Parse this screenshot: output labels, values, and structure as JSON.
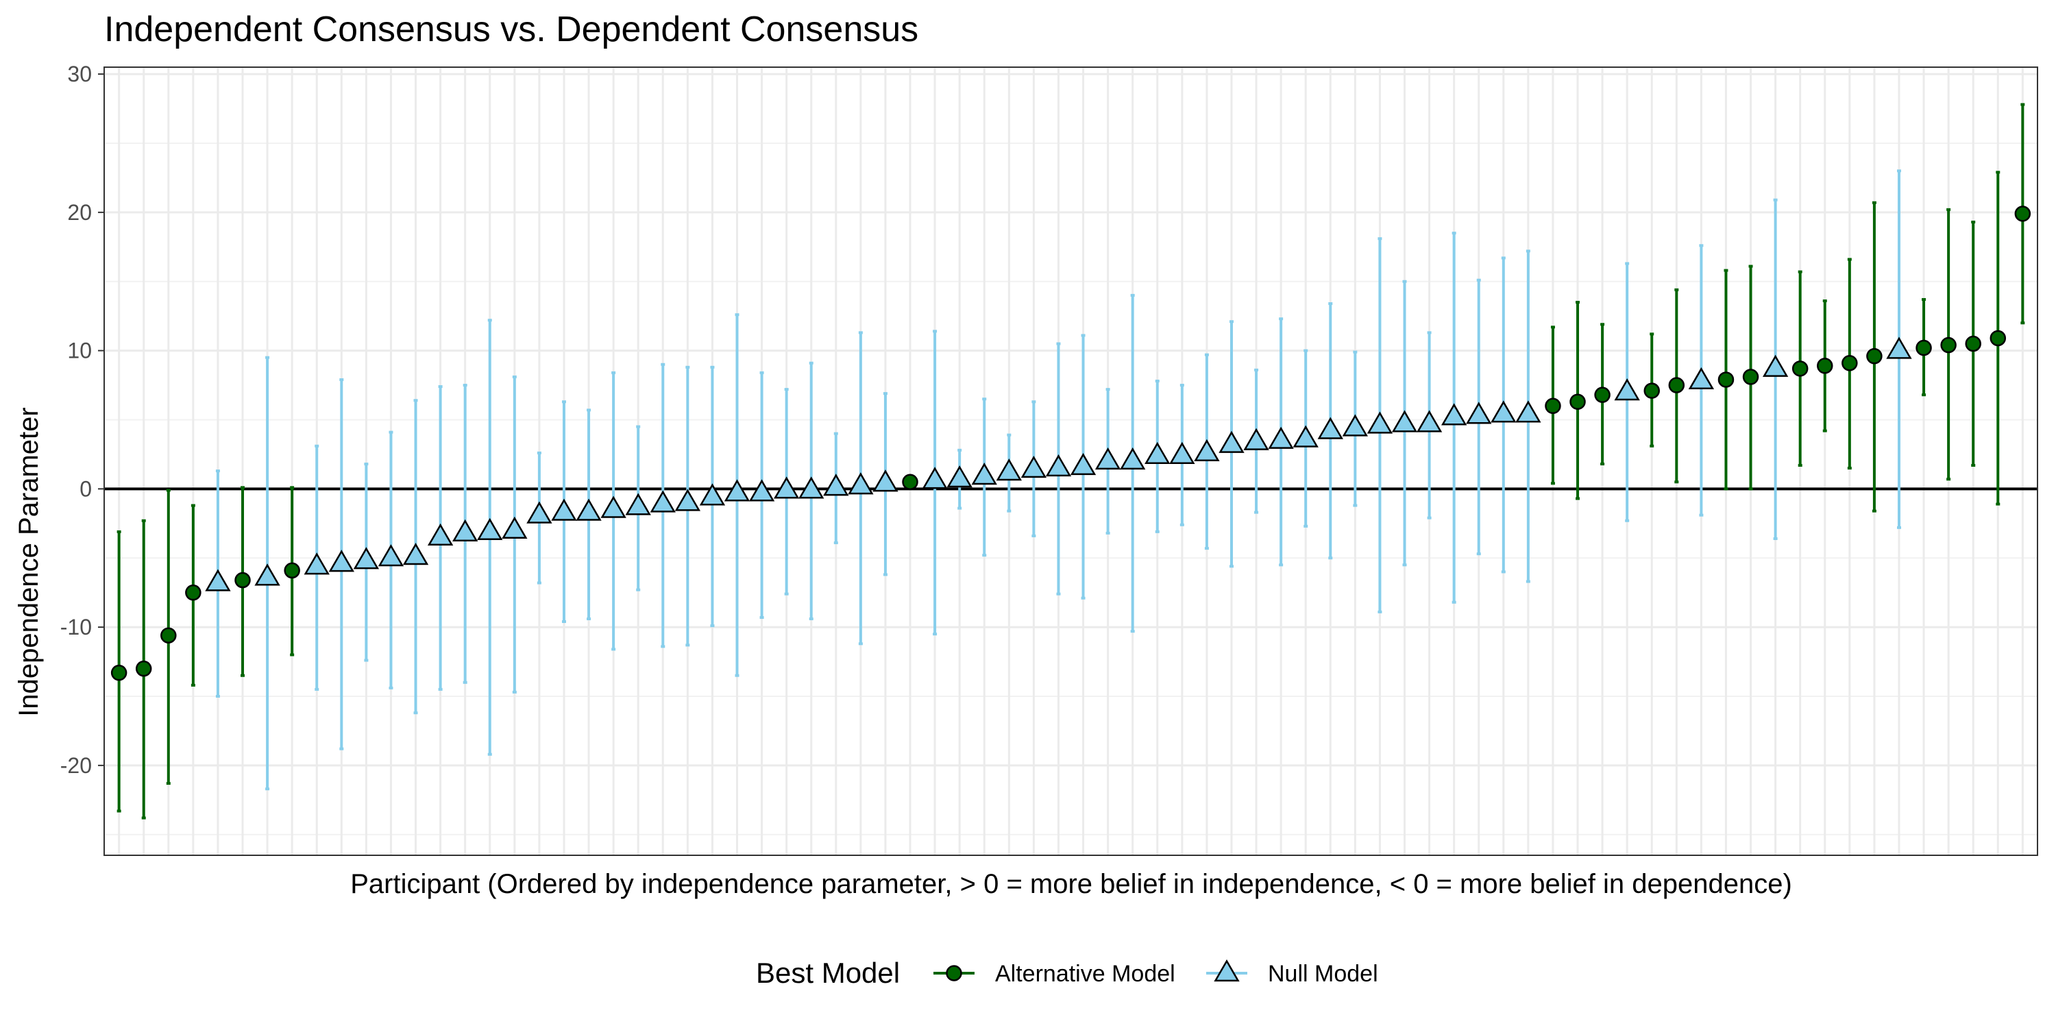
{
  "chart_data": {
    "type": "scatter",
    "title": "Independent Consensus vs. Dependent Consensus",
    "xlabel": "Participant (Ordered by independence parameter, > 0 = more belief in independence, < 0 = more belief in dependence)",
    "ylabel": "Independence Parameter",
    "ylim": [
      -26.5,
      30.5
    ],
    "yticks": [
      30,
      20,
      10,
      0,
      -10,
      -20
    ],
    "ytick_labels": [
      "30",
      "20",
      "10",
      "0",
      "-10",
      "-20"
    ],
    "reference_line_y": 0,
    "grid": true,
    "legend": {
      "title": "Best Model",
      "position": "bottom",
      "entries": [
        {
          "label": "Alternative Model",
          "shape": "circle",
          "fill": "#006400",
          "line": "#006400"
        },
        {
          "label": "Null Model",
          "shape": "triangle",
          "fill": "#87CEEB",
          "line": "#87CEEB"
        }
      ]
    },
    "x": [
      1,
      2,
      3,
      4,
      5,
      6,
      7,
      8,
      9,
      10,
      11,
      12,
      13,
      14,
      15,
      16,
      17,
      18,
      19,
      20,
      21,
      22,
      23,
      24,
      25,
      26,
      27,
      28,
      29,
      30,
      31,
      32,
      33,
      34,
      35,
      36,
      37,
      38,
      39,
      40,
      41,
      42,
      43,
      44,
      45,
      46,
      47,
      48,
      49,
      50,
      51,
      52,
      53,
      54,
      55,
      56,
      57,
      58,
      59,
      60,
      61,
      62,
      63,
      64,
      65,
      66,
      67,
      68,
      69,
      70,
      71,
      72,
      73,
      74,
      75,
      76,
      77,
      78
    ],
    "points": [
      {
        "x": 1,
        "y": -13.3,
        "lo": -23.3,
        "hi": -3.1,
        "model": "Alternative Model"
      },
      {
        "x": 2,
        "y": -13.0,
        "lo": -23.8,
        "hi": -2.3,
        "model": "Alternative Model"
      },
      {
        "x": 3,
        "y": -10.6,
        "lo": -21.3,
        "hi": -0.1,
        "model": "Alternative Model"
      },
      {
        "x": 4,
        "y": -7.5,
        "lo": -14.2,
        "hi": -1.2,
        "model": "Alternative Model"
      },
      {
        "x": 5,
        "y": -6.8,
        "lo": -15.0,
        "hi": 1.3,
        "model": "Null Model"
      },
      {
        "x": 6,
        "y": -6.6,
        "lo": -13.5,
        "hi": 0.1,
        "model": "Alternative Model"
      },
      {
        "x": 7,
        "y": -6.4,
        "lo": -21.7,
        "hi": 9.5,
        "model": "Null Model"
      },
      {
        "x": 8,
        "y": -5.9,
        "lo": -12.0,
        "hi": 0.1,
        "model": "Alternative Model"
      },
      {
        "x": 9,
        "y": -5.6,
        "lo": -14.5,
        "hi": 3.1,
        "model": "Null Model"
      },
      {
        "x": 10,
        "y": -5.4,
        "lo": -18.8,
        "hi": 7.9,
        "model": "Null Model"
      },
      {
        "x": 11,
        "y": -5.2,
        "lo": -12.4,
        "hi": 1.8,
        "model": "Null Model"
      },
      {
        "x": 12,
        "y": -5.0,
        "lo": -14.4,
        "hi": 4.1,
        "model": "Null Model"
      },
      {
        "x": 13,
        "y": -4.9,
        "lo": -16.2,
        "hi": 6.4,
        "model": "Null Model"
      },
      {
        "x": 14,
        "y": -3.5,
        "lo": -14.5,
        "hi": 7.4,
        "model": "Null Model"
      },
      {
        "x": 15,
        "y": -3.2,
        "lo": -14.0,
        "hi": 7.5,
        "model": "Null Model"
      },
      {
        "x": 16,
        "y": -3.1,
        "lo": -19.2,
        "hi": 12.2,
        "model": "Null Model"
      },
      {
        "x": 17,
        "y": -3.0,
        "lo": -14.7,
        "hi": 8.1,
        "model": "Null Model"
      },
      {
        "x": 18,
        "y": -1.9,
        "lo": -6.8,
        "hi": 2.6,
        "model": "Null Model"
      },
      {
        "x": 19,
        "y": -1.7,
        "lo": -9.6,
        "hi": 6.3,
        "model": "Null Model"
      },
      {
        "x": 20,
        "y": -1.7,
        "lo": -9.4,
        "hi": 5.7,
        "model": "Null Model"
      },
      {
        "x": 21,
        "y": -1.5,
        "lo": -11.6,
        "hi": 8.4,
        "model": "Null Model"
      },
      {
        "x": 22,
        "y": -1.3,
        "lo": -7.3,
        "hi": 4.5,
        "model": "Null Model"
      },
      {
        "x": 23,
        "y": -1.1,
        "lo": -11.4,
        "hi": 9.0,
        "model": "Null Model"
      },
      {
        "x": 24,
        "y": -1.0,
        "lo": -11.3,
        "hi": 8.8,
        "model": "Null Model"
      },
      {
        "x": 25,
        "y": -0.6,
        "lo": -9.9,
        "hi": 8.8,
        "model": "Null Model"
      },
      {
        "x": 26,
        "y": -0.3,
        "lo": -13.5,
        "hi": 12.6,
        "model": "Null Model"
      },
      {
        "x": 27,
        "y": -0.3,
        "lo": -9.3,
        "hi": 8.4,
        "model": "Null Model"
      },
      {
        "x": 28,
        "y": -0.1,
        "lo": -7.6,
        "hi": 7.2,
        "model": "Null Model"
      },
      {
        "x": 29,
        "y": -0.1,
        "lo": -9.4,
        "hi": 9.1,
        "model": "Null Model"
      },
      {
        "x": 30,
        "y": 0.1,
        "lo": -3.9,
        "hi": 4.0,
        "model": "Null Model"
      },
      {
        "x": 31,
        "y": 0.2,
        "lo": -11.2,
        "hi": 11.3,
        "model": "Null Model"
      },
      {
        "x": 32,
        "y": 0.4,
        "lo": -6.2,
        "hi": 6.9,
        "model": "Null Model"
      },
      {
        "x": 33,
        "y": 0.5,
        "lo": 0.4,
        "hi": 0.6,
        "model": "Alternative Model"
      },
      {
        "x": 34,
        "y": 0.6,
        "lo": -10.5,
        "hi": 11.4,
        "model": "Null Model"
      },
      {
        "x": 35,
        "y": 0.7,
        "lo": -1.4,
        "hi": 2.8,
        "model": "Null Model"
      },
      {
        "x": 36,
        "y": 0.9,
        "lo": -4.8,
        "hi": 6.5,
        "model": "Null Model"
      },
      {
        "x": 37,
        "y": 1.2,
        "lo": -1.6,
        "hi": 3.9,
        "model": "Null Model"
      },
      {
        "x": 38,
        "y": 1.4,
        "lo": -3.4,
        "hi": 6.3,
        "model": "Null Model"
      },
      {
        "x": 39,
        "y": 1.5,
        "lo": -7.6,
        "hi": 10.5,
        "model": "Null Model"
      },
      {
        "x": 40,
        "y": 1.6,
        "lo": -7.9,
        "hi": 11.1,
        "model": "Null Model"
      },
      {
        "x": 41,
        "y": 2.0,
        "lo": -3.2,
        "hi": 7.2,
        "model": "Null Model"
      },
      {
        "x": 42,
        "y": 2.0,
        "lo": -10.3,
        "hi": 14.0,
        "model": "Null Model"
      },
      {
        "x": 43,
        "y": 2.4,
        "lo": -3.1,
        "hi": 7.8,
        "model": "Null Model"
      },
      {
        "x": 44,
        "y": 2.4,
        "lo": -2.6,
        "hi": 7.5,
        "model": "Null Model"
      },
      {
        "x": 45,
        "y": 2.6,
        "lo": -4.3,
        "hi": 9.7,
        "model": "Null Model"
      },
      {
        "x": 46,
        "y": 3.2,
        "lo": -5.6,
        "hi": 12.1,
        "model": "Null Model"
      },
      {
        "x": 47,
        "y": 3.4,
        "lo": -1.7,
        "hi": 8.6,
        "model": "Null Model"
      },
      {
        "x": 48,
        "y": 3.5,
        "lo": -5.5,
        "hi": 12.3,
        "model": "Null Model"
      },
      {
        "x": 49,
        "y": 3.6,
        "lo": -2.7,
        "hi": 10.0,
        "model": "Null Model"
      },
      {
        "x": 50,
        "y": 4.2,
        "lo": -5.0,
        "hi": 13.4,
        "model": "Null Model"
      },
      {
        "x": 51,
        "y": 4.4,
        "lo": -1.2,
        "hi": 9.9,
        "model": "Null Model"
      },
      {
        "x": 52,
        "y": 4.6,
        "lo": -8.9,
        "hi": 18.1,
        "model": "Null Model"
      },
      {
        "x": 53,
        "y": 4.7,
        "lo": -5.5,
        "hi": 15.0,
        "model": "Null Model"
      },
      {
        "x": 54,
        "y": 4.7,
        "lo": -2.1,
        "hi": 11.3,
        "model": "Null Model"
      },
      {
        "x": 55,
        "y": 5.2,
        "lo": -8.2,
        "hi": 18.5,
        "model": "Null Model"
      },
      {
        "x": 56,
        "y": 5.3,
        "lo": -4.7,
        "hi": 15.1,
        "model": "Null Model"
      },
      {
        "x": 57,
        "y": 5.4,
        "lo": -6.0,
        "hi": 16.7,
        "model": "Null Model"
      },
      {
        "x": 58,
        "y": 5.4,
        "lo": -6.7,
        "hi": 17.2,
        "model": "Null Model"
      },
      {
        "x": 59,
        "y": 6.0,
        "lo": 0.4,
        "hi": 11.7,
        "model": "Alternative Model"
      },
      {
        "x": 60,
        "y": 6.3,
        "lo": -0.7,
        "hi": 13.5,
        "model": "Alternative Model"
      },
      {
        "x": 61,
        "y": 6.8,
        "lo": 1.8,
        "hi": 11.9,
        "model": "Alternative Model"
      },
      {
        "x": 62,
        "y": 7.0,
        "lo": -2.3,
        "hi": 16.3,
        "model": "Null Model"
      },
      {
        "x": 63,
        "y": 7.1,
        "lo": 3.1,
        "hi": 11.2,
        "model": "Alternative Model"
      },
      {
        "x": 64,
        "y": 7.5,
        "lo": 0.5,
        "hi": 14.4,
        "model": "Alternative Model"
      },
      {
        "x": 65,
        "y": 7.8,
        "lo": -1.9,
        "hi": 17.6,
        "model": "Null Model"
      },
      {
        "x": 66,
        "y": 7.9,
        "lo": 0.0,
        "hi": 15.8,
        "model": "Alternative Model"
      },
      {
        "x": 67,
        "y": 8.1,
        "lo": 0.0,
        "hi": 16.1,
        "model": "Alternative Model"
      },
      {
        "x": 68,
        "y": 8.7,
        "lo": -3.6,
        "hi": 20.9,
        "model": "Null Model"
      },
      {
        "x": 69,
        "y": 8.7,
        "lo": 1.7,
        "hi": 15.7,
        "model": "Alternative Model"
      },
      {
        "x": 70,
        "y": 8.9,
        "lo": 4.2,
        "hi": 13.6,
        "model": "Alternative Model"
      },
      {
        "x": 71,
        "y": 9.1,
        "lo": 1.5,
        "hi": 16.6,
        "model": "Alternative Model"
      },
      {
        "x": 72,
        "y": 9.6,
        "lo": -1.6,
        "hi": 20.7,
        "model": "Alternative Model"
      },
      {
        "x": 73,
        "y": 10.0,
        "lo": -2.8,
        "hi": 23.0,
        "model": "Null Model"
      },
      {
        "x": 74,
        "y": 10.2,
        "lo": 6.8,
        "hi": 13.7,
        "model": "Alternative Model"
      },
      {
        "x": 75,
        "y": 10.4,
        "lo": 0.7,
        "hi": 20.2,
        "model": "Alternative Model"
      },
      {
        "x": 76,
        "y": 10.5,
        "lo": 1.7,
        "hi": 19.3,
        "model": "Alternative Model"
      },
      {
        "x": 77,
        "y": 10.9,
        "lo": -1.1,
        "hi": 22.9,
        "model": "Alternative Model"
      },
      {
        "x": 78,
        "y": 19.9,
        "lo": 12.0,
        "hi": 27.8,
        "model": "Alternative Model"
      }
    ]
  },
  "colors": {
    "alternative_fill": "#006400",
    "alternative_line": "#006400",
    "null_fill": "#87CEEB",
    "null_line": "#87CEEB",
    "reference_line": "#000000",
    "grid_major": "#ebebeb",
    "grid_minor": "#f2f2f2",
    "panel_border": "#333333"
  }
}
